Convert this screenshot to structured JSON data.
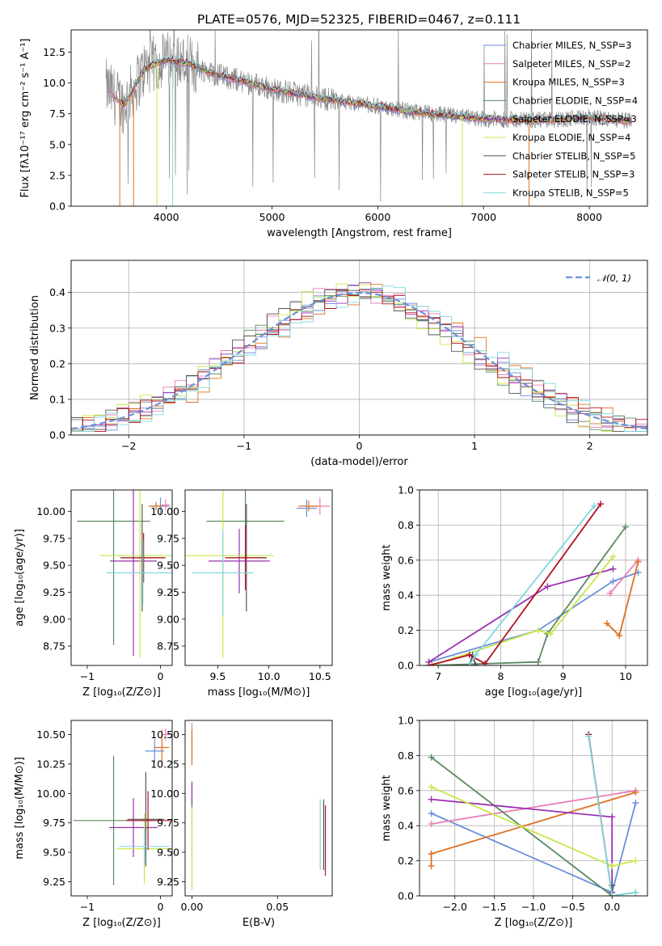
{
  "colors": {
    "c0": "#6b8fd9",
    "c1": "#e87fb5",
    "c2": "#e07020",
    "c3": "#5b8a5f",
    "c4": "#9b30b0",
    "c5": "#c8e84a",
    "c6": "#555555",
    "c7": "#b01020",
    "c8": "#7fd8dd",
    "data": "#888888"
  },
  "chart_data": [
    {
      "id": "spectrum",
      "type": "line",
      "title": "PLATE=0576, MJD=52325, FIBERID=0467, z=0.111",
      "xlabel": "wavelength [Angstrom, rest frame]",
      "ylabel": "Flux [fλ10⁻¹⁷ erg cm⁻² s⁻¹ A⁻¹]",
      "xlim": [
        3100,
        8550
      ],
      "ylim": [
        0,
        14.3
      ],
      "xticks": [
        "4000",
        "5000",
        "6000",
        "7000",
        "8000"
      ],
      "yticks": [
        "0.0",
        "2.5",
        "5.0",
        "7.5",
        "10.0",
        "12.5"
      ],
      "legend_position": "upper-right",
      "continuum_x": [
        3430,
        3600,
        3800,
        4000,
        4200,
        4400,
        4600,
        4800,
        5000,
        5300,
        5600,
        6000,
        6300,
        6600,
        7000,
        7300,
        7600,
        8000,
        8400
      ],
      "continuum_y": [
        9.6,
        8.2,
        11.2,
        11.9,
        11.6,
        10.9,
        10.4,
        10.0,
        9.5,
        9.0,
        8.6,
        8.1,
        7.7,
        7.4,
        7.1,
        7.0,
        7.0,
        7.2,
        6.9
      ],
      "series": [
        {
          "name": "Chabrier MILES, N_SSP=3"
        },
        {
          "name": "Salpeter MILES, N_SSP=2"
        },
        {
          "name": "Kroupa MILES, N_SSP=3"
        },
        {
          "name": "Chabrier ELODIE, N_SSP=4"
        },
        {
          "name": "Salpeter ELODIE, N_SSP=3"
        },
        {
          "name": "Kroupa ELODIE, N_SSP=4"
        },
        {
          "name": "Chabrier STELIB, N_SSP=5"
        },
        {
          "name": "Salpeter STELIB, N_SSP=3"
        },
        {
          "name": "Kroupa STELIB, N_SSP=5"
        }
      ]
    },
    {
      "id": "residuals",
      "type": "bar",
      "xlabel": "(data-model)/error",
      "ylabel": "Normed distribution",
      "xlim": [
        -2.5,
        2.5
      ],
      "ylim": [
        0,
        0.49
      ],
      "xticks": [
        -2,
        -1,
        0,
        1,
        2
      ],
      "yticks": [
        "0.0",
        "0.1",
        "0.2",
        "0.3",
        "0.4"
      ],
      "grid": true,
      "legend_position": "upper-right",
      "reference_name": "𝒩(0, 1)",
      "bin_width": 0.1,
      "histogram_x_start": -2.5
    },
    {
      "id": "age_vs_Z",
      "type": "scatter",
      "xlabel": "Z [log₁₀(Z/Z⊙)]",
      "ylabel": "age  [log₁₀(age/yr)]",
      "xlim": [
        -1.22,
        0.16
      ],
      "ylim": [
        8.57,
        10.2
      ],
      "xticks": [
        "−1",
        "0"
      ],
      "yticks": [
        "8.75",
        "9.00",
        "9.25",
        "9.50",
        "9.75",
        "10.00"
      ],
      "points": [
        {
          "series": 0,
          "x": 0.0,
          "y": 10.05,
          "xerr": 0.12,
          "yerr": 0.08
        },
        {
          "series": 1,
          "x": 0.07,
          "y": 10.06,
          "xerr": 0.06,
          "yerr": 0.05
        },
        {
          "series": 2,
          "x": -0.06,
          "y": 10.05,
          "xerr": 0.1,
          "yerr": 0.04
        },
        {
          "series": 3,
          "x": -0.64,
          "y": 9.91,
          "xerr": 0.5,
          "yerr": 1.15
        },
        {
          "series": 4,
          "x": -0.37,
          "y": 9.54,
          "xerr": 0.32,
          "yerr": 0.88
        },
        {
          "series": 5,
          "x": -0.28,
          "y": 9.59,
          "xerr": 0.55,
          "yerr": 0.95
        },
        {
          "series": 6,
          "x": -0.25,
          "y": 9.57,
          "xerr": 0.3,
          "yerr": 0.5
        },
        {
          "series": 7,
          "x": -0.23,
          "y": 9.57,
          "xerr": 0.3,
          "yerr": 0.23
        },
        {
          "series": 8,
          "x": -0.24,
          "y": 9.43,
          "xerr": 0.5,
          "yerr": 0.3
        }
      ]
    },
    {
      "id": "age_vs_mass",
      "type": "scatter",
      "xlabel": "mass [log₁₀(M/M⊙)]",
      "xlim": [
        9.18,
        10.62
      ],
      "ylim": [
        8.57,
        10.2
      ],
      "xticks": [
        "9.5",
        "10.0",
        "10.5"
      ],
      "yticks": [
        "8.75",
        "9.00",
        "9.25",
        "9.50",
        "9.75",
        "10.00"
      ],
      "points": [
        {
          "series": 0,
          "x": 10.37,
          "y": 10.03,
          "xerr": 0.1,
          "yerr": 0.08
        },
        {
          "series": 1,
          "x": 10.5,
          "y": 10.05,
          "xerr": 0.1,
          "yerr": 0.08
        },
        {
          "series": 2,
          "x": 10.39,
          "y": 10.05,
          "xerr": 0.1,
          "yerr": 0.05
        },
        {
          "series": 3,
          "x": 9.77,
          "y": 9.91,
          "xerr": 0.38,
          "yerr": 0.3
        },
        {
          "series": 4,
          "x": 9.71,
          "y": 9.54,
          "xerr": 0.3,
          "yerr": 0.3
        },
        {
          "series": 5,
          "x": 9.55,
          "y": 9.59,
          "xerr": 0.5,
          "yerr": 0.95
        },
        {
          "series": 6,
          "x": 9.78,
          "y": 9.57,
          "xerr": 0.2,
          "yerr": 0.5
        },
        {
          "series": 7,
          "x": 9.77,
          "y": 9.57,
          "xerr": 0.2,
          "yerr": 0.3
        },
        {
          "series": 8,
          "x": 9.55,
          "y": 9.43,
          "xerr": 0.3,
          "yerr": 0.4
        }
      ]
    },
    {
      "id": "weight_vs_age",
      "type": "line",
      "xlabel": "age  [log₁₀(age/yr)]",
      "ylabel": "mass weight",
      "xlim": [
        6.7,
        10.35
      ],
      "ylim": [
        0,
        1.0
      ],
      "xticks": [
        7,
        8,
        9,
        10
      ],
      "yticks": [
        "0.0",
        "0.2",
        "0.4",
        "0.6",
        "0.8",
        "1.0"
      ],
      "grid": true,
      "series": [
        {
          "color": "c0",
          "x": [
            6.85,
            8.6,
            9.8,
            10.2
          ],
          "y": [
            0.02,
            0.2,
            0.48,
            0.53
          ]
        },
        {
          "color": "c1",
          "x": [
            9.75,
            10.2
          ],
          "y": [
            0.41,
            0.6
          ]
        },
        {
          "color": "c2",
          "x": [
            9.7,
            9.9,
            10.2
          ],
          "y": [
            0.24,
            0.17,
            0.59
          ]
        },
        {
          "color": "c3",
          "x": [
            6.9,
            8.6,
            8.75,
            10.0
          ],
          "y": [
            0.0,
            0.02,
            0.18,
            0.79
          ]
        },
        {
          "color": "c4",
          "x": [
            6.85,
            8.75,
            9.8
          ],
          "y": [
            0.02,
            0.45,
            0.55
          ]
        },
        {
          "color": "c5",
          "x": [
            6.9,
            8.6,
            8.8,
            9.8
          ],
          "y": [
            0.0,
            0.2,
            0.18,
            0.62
          ]
        },
        {
          "color": "c6",
          "x": [
            7.5,
            7.55,
            7.6
          ],
          "y": [
            0.0,
            0.06,
            0.0
          ]
        },
        {
          "color": "c7",
          "x": [
            6.85,
            7.5,
            7.75,
            9.6
          ],
          "y": [
            0.0,
            0.06,
            0.01,
            0.92
          ]
        },
        {
          "color": "c8",
          "x": [
            7.5,
            7.6,
            9.5
          ],
          "y": [
            0.0,
            0.06,
            0.91
          ]
        }
      ]
    },
    {
      "id": "mass_vs_Z",
      "type": "scatter",
      "xlabel": "Z [log₁₀(Z/Z⊙)]",
      "ylabel": "mass [log₁₀(M/M⊙)]",
      "xlim": [
        -1.22,
        0.16
      ],
      "ylim": [
        9.13,
        10.62
      ],
      "xticks": [
        "−1",
        "0"
      ],
      "yticks": [
        "9.25",
        "9.50",
        "9.75",
        "10.00",
        "10.25",
        "10.50"
      ],
      "points": [
        {
          "series": 0,
          "x": -0.08,
          "y": 10.36,
          "xerr": 0.13,
          "yerr": 0.1
        },
        {
          "series": 1,
          "x": 0.07,
          "y": 10.5,
          "xerr": 0.06,
          "yerr": 0.05
        },
        {
          "series": 2,
          "x": 0.02,
          "y": 10.39,
          "xerr": 0.1,
          "yerr": 0.15
        },
        {
          "series": 3,
          "x": -0.64,
          "y": 9.77,
          "xerr": 0.55,
          "yerr": 0.55
        },
        {
          "series": 4,
          "x": -0.37,
          "y": 9.71,
          "xerr": 0.33,
          "yerr": 0.25
        },
        {
          "series": 5,
          "x": -0.22,
          "y": 9.53,
          "xerr": 0.38,
          "yerr": 0.3
        },
        {
          "series": 6,
          "x": -0.2,
          "y": 9.78,
          "xerr": 0.25,
          "yerr": 0.4
        },
        {
          "series": 7,
          "x": -0.17,
          "y": 9.77,
          "xerr": 0.3,
          "yerr": 0.25
        },
        {
          "series": 8,
          "x": -0.22,
          "y": 9.55,
          "xerr": 0.35,
          "yerr": 0.15
        }
      ]
    },
    {
      "id": "mass_vs_EBV",
      "type": "scatter",
      "xlabel": "E(B-V)",
      "xlim": [
        -0.004,
        0.082
      ],
      "ylim": [
        9.13,
        10.62
      ],
      "xticks": [
        "0.00",
        "0.05"
      ],
      "yticks": [
        "9.25",
        "9.50",
        "9.75",
        "10.00",
        "10.25",
        "10.50"
      ],
      "points": [
        {
          "series": 0,
          "x": 0.0,
          "y": 10.36,
          "xerr": 0.0,
          "yerr": 0.1
        },
        {
          "series": 1,
          "x": 0.0,
          "y": 10.5,
          "xerr": 0.0,
          "yerr": 0.1
        },
        {
          "series": 2,
          "x": 0.0,
          "y": 10.39,
          "xerr": 0.0,
          "yerr": 0.15
        },
        {
          "series": 3,
          "x": 0.0,
          "y": 9.77,
          "xerr": 0.0,
          "yerr": 0.3
        },
        {
          "series": 4,
          "x": 0.0,
          "y": 10.0,
          "xerr": 0.0,
          "yerr": 0.1
        },
        {
          "series": 5,
          "x": 0.0,
          "y": 9.53,
          "xerr": 0.0,
          "yerr": 0.35
        },
        {
          "series": 6,
          "x": 0.077,
          "y": 9.65,
          "xerr": 0.0,
          "yerr": 0.3
        },
        {
          "series": 7,
          "x": 0.078,
          "y": 9.6,
          "xerr": 0.0,
          "yerr": 0.3
        },
        {
          "series": 8,
          "x": 0.075,
          "y": 9.65,
          "xerr": 0.0,
          "yerr": 0.3
        }
      ]
    },
    {
      "id": "weight_vs_Z",
      "type": "line",
      "xlabel": "Z [log₁₀(Z/Z⊙)]",
      "ylabel": "mass weight",
      "xlim": [
        -2.45,
        0.45
      ],
      "ylim": [
        0,
        1.0
      ],
      "xticks": [
        "−2.0",
        "−1.5",
        "−1.0",
        "−0.5",
        "0.0"
      ],
      "yticks": [
        "0.0",
        "0.2",
        "0.4",
        "0.6",
        "0.8",
        "1.0"
      ],
      "grid": true,
      "series": [
        {
          "color": "c0",
          "x": [
            -2.3,
            0.0,
            0.3
          ],
          "y": [
            0.47,
            0.02,
            0.53
          ]
        },
        {
          "color": "c1",
          "x": [
            -2.3,
            0.3
          ],
          "y": [
            0.41,
            0.6
          ]
        },
        {
          "color": "c2",
          "x": [
            -2.3,
            -2.3,
            0.3
          ],
          "y": [
            0.17,
            0.24,
            0.59
          ]
        },
        {
          "color": "c3",
          "x": [
            -2.3,
            0.0,
            0.3
          ],
          "y": [
            0.79,
            0.0,
            0.02
          ]
        },
        {
          "color": "c4",
          "x": [
            -2.3,
            0.0,
            0.0
          ],
          "y": [
            0.55,
            0.45,
            0.02
          ]
        },
        {
          "color": "c5",
          "x": [
            -2.3,
            0.0,
            0.3
          ],
          "y": [
            0.62,
            0.17,
            0.2
          ]
        },
        {
          "color": "c6",
          "x": [
            0.0,
            0.0
          ],
          "y": [
            0.0,
            0.06
          ]
        },
        {
          "color": "c7",
          "x": [
            -0.3,
            0.0
          ],
          "y": [
            0.92,
            0.0
          ]
        },
        {
          "color": "c8",
          "x": [
            -0.3,
            0.0,
            0.3
          ],
          "y": [
            0.91,
            0.0,
            0.02
          ]
        }
      ]
    }
  ]
}
